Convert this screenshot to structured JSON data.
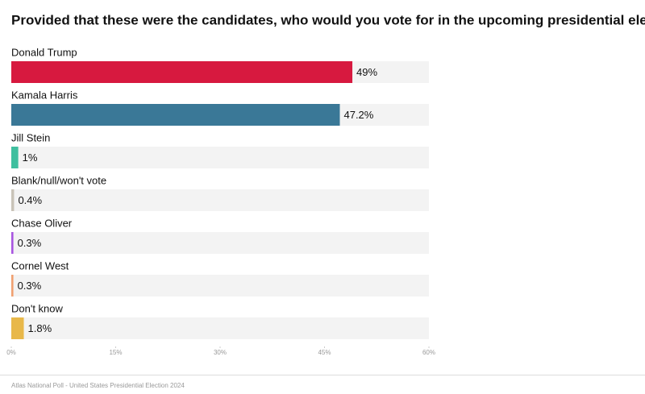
{
  "chart_data": {
    "type": "hbar",
    "title": "Provided that these were the candidates, who would you vote for in the upcoming presidential election?",
    "categories": [
      "Donald Trump",
      "Kamala Harris",
      "Jill Stein",
      "Blank/null/won't vote",
      "Chase Oliver",
      "Cornel West",
      "Don't know"
    ],
    "values": [
      49,
      47.2,
      1,
      0.4,
      0.3,
      0.3,
      1.8
    ],
    "value_labels": [
      "49%",
      "47.2%",
      "1%",
      "0.4%",
      "0.3%",
      "0.3%",
      "1.8%"
    ],
    "colors": [
      "#d7193f",
      "#3a7897",
      "#3fbf9f",
      "#c9c3b8",
      "#a855e0",
      "#f0a070",
      "#e8b84a"
    ],
    "xlim": [
      0,
      60
    ],
    "xticks": [
      {
        "value": 0,
        "label": "0%"
      },
      {
        "value": 15,
        "label": "15%"
      },
      {
        "value": 30,
        "label": "30%"
      },
      {
        "value": 45,
        "label": "45%"
      },
      {
        "value": 60,
        "label": "60%"
      }
    ],
    "source": "Atlas National Poll - United States Presidential Election 2024"
  }
}
